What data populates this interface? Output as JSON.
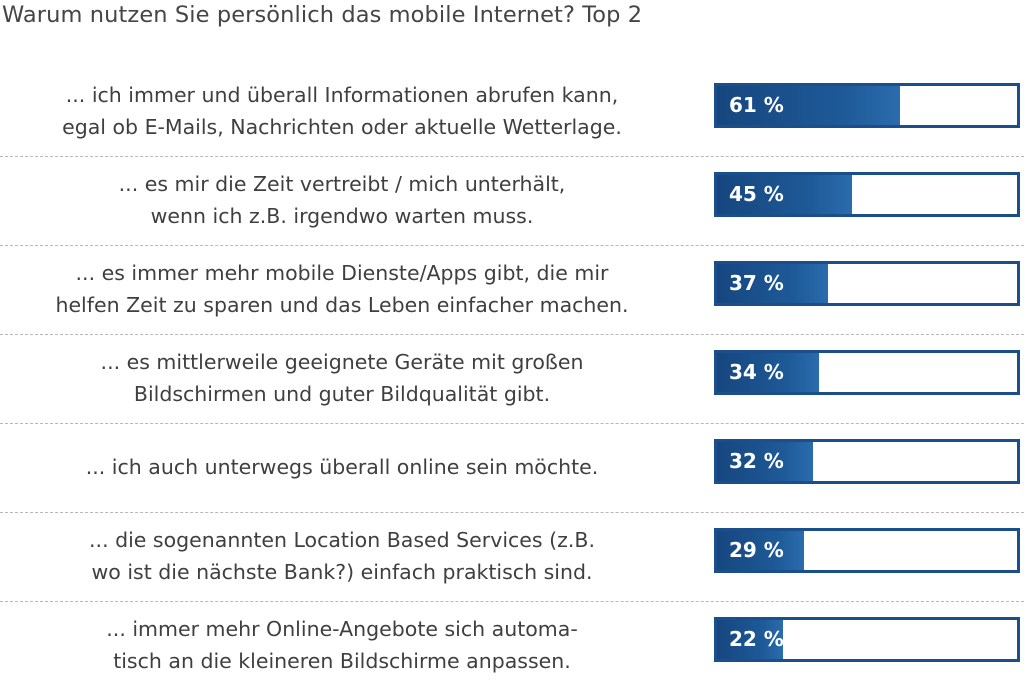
{
  "chart_data": {
    "type": "bar",
    "orientation": "horizontal",
    "title": "Warum nutzen Sie persönlich das mobile Internet? Top 2",
    "xlabel": "",
    "ylabel": "",
    "xlim": [
      0,
      100
    ],
    "unit": "%",
    "categories": [
      {
        "line1": "... ich immer und überall Informationen abrufen kann,",
        "line2": "egal ob E-Mails, Nachrichten oder aktuelle Wetterlage."
      },
      {
        "line1": "... es mir die Zeit vertreibt / mich unterhält,",
        "line2": "wenn ich z.B. irgendwo warten muss."
      },
      {
        "line1": "... es immer mehr mobile Dienste/Apps gibt, die mir",
        "line2": "helfen Zeit zu sparen und das Leben einfacher machen."
      },
      {
        "line1": "... es mittlerweile geeignete Geräte mit großen",
        "line2": "Bildschirmen und guter Bildqualität gibt."
      },
      {
        "line1": "... ich auch unterwegs überall online sein möchte.",
        "line2": ""
      },
      {
        "line1": "... die sogenannten Location Based Services (z.B.",
        "line2": "wo ist die nächste Bank?) einfach praktisch sind."
      },
      {
        "line1": "... immer mehr Online-Angebote sich automa-",
        "line2": "tisch an die kleineren Bildschirme anpassen."
      }
    ],
    "values": [
      61,
      45,
      37,
      34,
      32,
      29,
      22
    ],
    "value_labels": [
      "61 %",
      "45 %",
      "37 %",
      "34 %",
      "32 %",
      "29 %",
      "22 %"
    ],
    "colors": {
      "bar_fill": "#1e5a98",
      "bar_border": "#1b4f8c",
      "value_text": "#ffffff"
    }
  }
}
